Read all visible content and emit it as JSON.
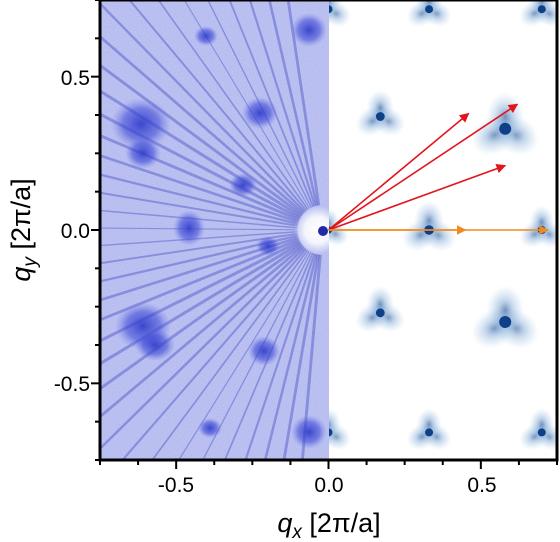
{
  "figure": {
    "x_axis": {
      "label_symbol": "q",
      "label_subscript": "x",
      "label_units": " [2π/a]",
      "ticks": [
        "-0.5",
        "0.0",
        "0.5"
      ],
      "range": [
        -0.75,
        0.75
      ]
    },
    "y_axis": {
      "label_symbol": "q",
      "label_subscript": "y",
      "label_units": " [2π/a]",
      "ticks": [
        "0.5",
        "0.0",
        "-0.5"
      ],
      "range": [
        -0.75,
        0.75
      ]
    },
    "left_half": "measured QPI map (blue intensity)",
    "right_half": "simulated QPI map",
    "colors": {
      "measured": "#3b46d6",
      "simulated": "#1b5aa6",
      "arrow_red": "#e3141b",
      "arrow_orange": "#f08a1c"
    }
  },
  "chart_data": {
    "type": "heatmap",
    "xlabel": "q_x [2π/a]",
    "ylabel": "q_y [2π/a]",
    "xlim": [
      -0.75,
      0.75
    ],
    "ylim": [
      -0.75,
      0.75
    ],
    "x_ticks": [
      -0.5,
      0.0,
      0.5
    ],
    "y_ticks": [
      -0.5,
      0.0,
      0.5
    ],
    "arrows": [
      {
        "color": "red",
        "from": [
          0.0,
          0.0
        ],
        "to": [
          0.46,
          0.38
        ]
      },
      {
        "color": "red",
        "from": [
          0.0,
          0.0
        ],
        "to": [
          0.62,
          0.41
        ]
      },
      {
        "color": "red",
        "from": [
          0.0,
          0.0
        ],
        "to": [
          0.58,
          0.21
        ]
      },
      {
        "color": "orange",
        "from": [
          0.0,
          0.0
        ],
        "to": [
          0.45,
          0.0
        ]
      },
      {
        "color": "orange",
        "from": [
          0.0,
          0.0
        ],
        "to": [
          0.72,
          0.0
        ]
      }
    ]
  }
}
